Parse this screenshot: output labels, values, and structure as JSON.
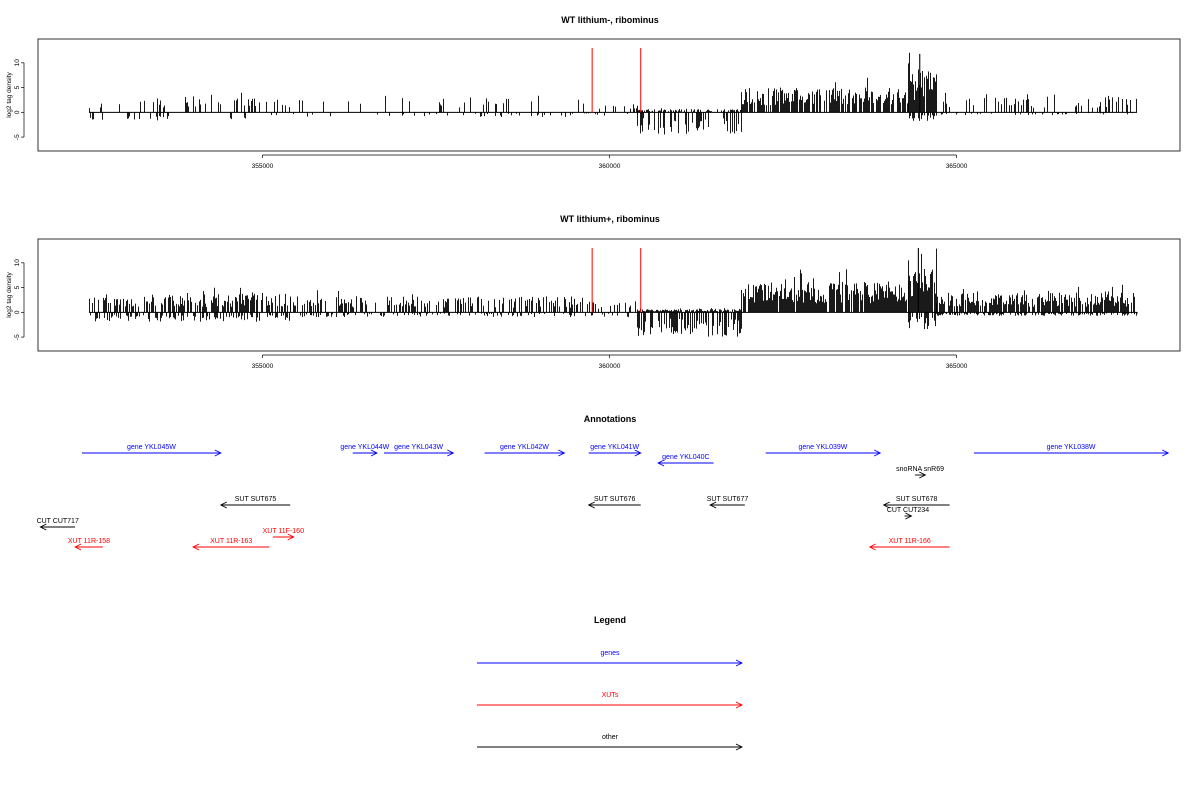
{
  "chart_data": [
    {
      "type": "bar",
      "title": "WT lithium-, ribominus",
      "ylabel": "log2 tag density",
      "xlabel": "",
      "xlim": [
        352400,
        367600
      ],
      "ylim": [
        -7,
        14
      ],
      "yticks": [
        -5,
        0,
        5,
        10
      ],
      "xticks": [
        355000,
        360000,
        365000
      ],
      "x_tick_labels": [
        "355000",
        "360000",
        "365000"
      ],
      "y_tick_labels": [
        "-5",
        "0",
        "5",
        "10"
      ],
      "markers": [
        359750,
        360450
      ],
      "marker_height": 13,
      "colors": {
        "signal": "#000000",
        "marker": "#ff0000"
      },
      "profile": [
        {
          "x0": 352500,
          "x1": 355400,
          "up": 2.3,
          "down": 1.5,
          "density": 0.2
        },
        {
          "x0": 355400,
          "x1": 359600,
          "up": 2.5,
          "down": 0.8,
          "density": 0.12
        },
        {
          "x0": 359600,
          "x1": 360400,
          "up": 1.5,
          "down": 0.6,
          "density": 0.18
        },
        {
          "x0": 360400,
          "x1": 361900,
          "up": 0.5,
          "down": 3.8,
          "density": 0.55
        },
        {
          "x0": 361900,
          "x1": 364300,
          "up": 4.0,
          "down": 0.3,
          "density": 0.75
        },
        {
          "x0": 364300,
          "x1": 364700,
          "up": 7.0,
          "down": 1.5,
          "density": 0.9
        },
        {
          "x0": 364700,
          "x1": 367600,
          "up": 2.5,
          "down": 0.5,
          "density": 0.22
        }
      ],
      "peaks": [
        {
          "x": 364470,
          "y": 11.8
        }
      ]
    },
    {
      "type": "bar",
      "title": "WT lithium+, ribominus",
      "ylabel": "log2 tag density",
      "xlabel": "",
      "xlim": [
        352400,
        367600
      ],
      "ylim": [
        -7,
        14
      ],
      "yticks": [
        -5,
        0,
        5,
        10
      ],
      "xticks": [
        355000,
        360000,
        365000
      ],
      "x_tick_labels": [
        "355000",
        "360000",
        "365000"
      ],
      "y_tick_labels": [
        "-5",
        "0",
        "5",
        "10"
      ],
      "markers": [
        359750,
        360450
      ],
      "marker_height": 13,
      "colors": {
        "signal": "#000000",
        "marker": "#ff0000"
      },
      "profile": [
        {
          "x0": 352500,
          "x1": 355400,
          "up": 3.0,
          "down": 1.6,
          "density": 0.6
        },
        {
          "x0": 355400,
          "x1": 359600,
          "up": 2.6,
          "down": 0.8,
          "density": 0.45
        },
        {
          "x0": 359600,
          "x1": 360400,
          "up": 1.8,
          "down": 0.8,
          "density": 0.3
        },
        {
          "x0": 360400,
          "x1": 361900,
          "up": 0.5,
          "down": 4.2,
          "density": 0.85
        },
        {
          "x0": 361900,
          "x1": 364300,
          "up": 5.0,
          "down": 0.3,
          "density": 0.95
        },
        {
          "x0": 364300,
          "x1": 364700,
          "up": 7.5,
          "down": 3.0,
          "density": 0.95
        },
        {
          "x0": 364700,
          "x1": 367600,
          "up": 3.2,
          "down": 0.6,
          "density": 0.75
        }
      ],
      "peaks": [
        {
          "x": 364450,
          "y": 13.0
        }
      ]
    }
  ],
  "annotations": {
    "title": "Annotations",
    "features": [
      {
        "label": "gene YKL045W",
        "kind": "gene",
        "strand": "+",
        "start": 352400,
        "end": 354400,
        "row": 0
      },
      {
        "label": "gene YKL044W",
        "kind": "gene",
        "strand": "+",
        "start": 356300,
        "end": 356650,
        "row": 0
      },
      {
        "label": "gene YKL043W",
        "kind": "gene",
        "strand": "+",
        "start": 356750,
        "end": 357750,
        "row": 0
      },
      {
        "label": "gene YKL042W",
        "kind": "gene",
        "strand": "+",
        "start": 358200,
        "end": 359350,
        "row": 0
      },
      {
        "label": "gene YKL041W",
        "kind": "gene",
        "strand": "+",
        "start": 359700,
        "end": 360450,
        "row": 0
      },
      {
        "label": "gene YKL040C",
        "kind": "gene",
        "strand": "-",
        "start": 360700,
        "end": 361500,
        "row": 1
      },
      {
        "label": "gene YKL039W",
        "kind": "gene",
        "strand": "+",
        "start": 362250,
        "end": 363900,
        "row": 0
      },
      {
        "label": "gene YKL038W",
        "kind": "gene",
        "strand": "+",
        "start": 365250,
        "end": 368050,
        "row": 0
      },
      {
        "label": "snoRNA snR69",
        "kind": "other",
        "strand": "+",
        "start": 364400,
        "end": 364550,
        "row": 2
      },
      {
        "label": "SUT SUT675",
        "kind": "other",
        "strand": "-",
        "start": 354400,
        "end": 355400,
        "row": 3
      },
      {
        "label": "SUT SUT676",
        "kind": "other",
        "strand": "-",
        "start": 359700,
        "end": 360450,
        "row": 3
      },
      {
        "label": "SUT SUT677",
        "kind": "other",
        "strand": "-",
        "start": 361450,
        "end": 361950,
        "row": 3
      },
      {
        "label": "SUT SUT678",
        "kind": "other",
        "strand": "-",
        "start": 363950,
        "end": 364900,
        "row": 3
      },
      {
        "label": "CUT CUT234",
        "kind": "other",
        "strand": "+",
        "start": 364250,
        "end": 364350,
        "row": 4
      },
      {
        "label": "CUT CUT717",
        "kind": "other",
        "strand": "-",
        "start": 351800,
        "end": 352300,
        "row": 5
      },
      {
        "label": "XUT 11F-160",
        "kind": "xut",
        "strand": "+",
        "start": 355150,
        "end": 355450,
        "row": 6
      },
      {
        "label": "XUT 11R-158",
        "kind": "xut",
        "strand": "-",
        "start": 352300,
        "end": 352700,
        "row": 7
      },
      {
        "label": "XUT 11R-163",
        "kind": "xut",
        "strand": "-",
        "start": 354000,
        "end": 355100,
        "row": 7
      },
      {
        "label": "XUT 11R-166",
        "kind": "xut",
        "strand": "-",
        "start": 363750,
        "end": 364900,
        "row": 7
      }
    ]
  },
  "legend": {
    "title": "Legend",
    "items": [
      {
        "label": "genes",
        "color": "#0000ff"
      },
      {
        "label": "XUTs",
        "color": "#ff0000"
      },
      {
        "label": "other",
        "color": "#000000"
      }
    ]
  }
}
